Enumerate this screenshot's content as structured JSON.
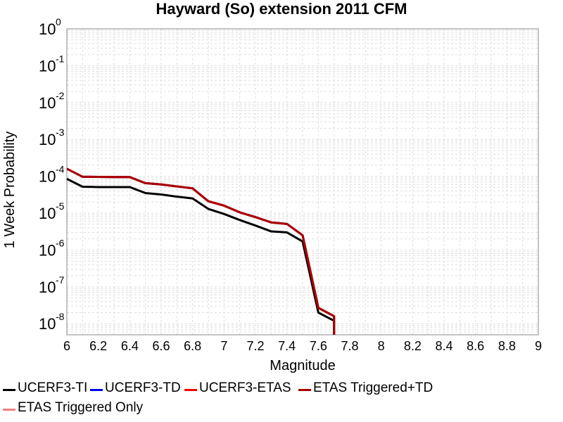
{
  "chart_data": {
    "type": "line",
    "title": "Hayward (So) extension 2011 CFM",
    "xlabel": "Magnitude",
    "ylabel": "1 Week Probability",
    "xlim": [
      6,
      9
    ],
    "ylim": [
      5e-09,
      1
    ],
    "y_scale": "log",
    "grid": true,
    "legend_position": "bottom",
    "x_ticks": [
      "6",
      "6.2",
      "6.4",
      "6.6",
      "6.8",
      "7",
      "7.2",
      "7.4",
      "7.6",
      "7.8",
      "8",
      "8.2",
      "8.4",
      "8.6",
      "8.8",
      "9"
    ],
    "y_ticks": [
      {
        "base": "10",
        "exp": "0"
      },
      {
        "base": "10",
        "exp": "-1"
      },
      {
        "base": "10",
        "exp": "-2"
      },
      {
        "base": "10",
        "exp": "-3"
      },
      {
        "base": "10",
        "exp": "-4"
      },
      {
        "base": "10",
        "exp": "-5"
      },
      {
        "base": "10",
        "exp": "-6"
      },
      {
        "base": "10",
        "exp": "-7"
      },
      {
        "base": "10",
        "exp": "-8"
      }
    ],
    "series": [
      {
        "name": "UCERF3-TI",
        "color": "#000000",
        "x": [
          6.0,
          6.1,
          6.2,
          6.3,
          6.4,
          6.5,
          6.6,
          6.7,
          6.8,
          6.9,
          7.0,
          7.1,
          7.2,
          7.3,
          7.4,
          7.5,
          7.6,
          7.7,
          7.7
        ],
        "y": [
          8.5e-05,
          5.2e-05,
          5.1e-05,
          5.1e-05,
          5.1e-05,
          3.5e-05,
          3.2e-05,
          2.8e-05,
          2.5e-05,
          1.3e-05,
          9.5e-06,
          6.5e-06,
          4.6e-06,
          3.2e-06,
          3e-06,
          1.7e-06,
          2e-08,
          1.2e-08,
          5e-09
        ]
      },
      {
        "name": "UCERF3-TD",
        "color": "#0000ff",
        "x": [
          6.0,
          6.1,
          6.2,
          6.3,
          6.4,
          6.5,
          6.6,
          6.7,
          6.8,
          6.9,
          7.0,
          7.1,
          7.2,
          7.3,
          7.4,
          7.5,
          7.6,
          7.7,
          7.7
        ],
        "y": [
          0.00016,
          9.7e-05,
          9.6e-05,
          9.5e-05,
          9.5e-05,
          6.5e-05,
          6e-05,
          5.3e-05,
          4.7e-05,
          2.1e-05,
          1.6e-05,
          1.05e-05,
          7.8e-06,
          5.6e-06,
          5.1e-06,
          2.5e-06,
          2.7e-08,
          1.6e-08,
          5e-09
        ]
      },
      {
        "name": "UCERF3-ETAS",
        "color": "#ff0000",
        "x": [
          6.0,
          6.1,
          6.2,
          6.3,
          6.4,
          6.5,
          6.6,
          6.7,
          6.8,
          6.9,
          7.0,
          7.1,
          7.2,
          7.3,
          7.4,
          7.5,
          7.6,
          7.7,
          7.7
        ],
        "y": [
          0.00016,
          9.7e-05,
          9.6e-05,
          9.5e-05,
          9.5e-05,
          6.5e-05,
          6e-05,
          5.3e-05,
          4.7e-05,
          2.1e-05,
          1.6e-05,
          1.05e-05,
          7.8e-06,
          5.6e-06,
          5.1e-06,
          2.5e-06,
          2.7e-08,
          1.6e-08,
          5e-09
        ]
      },
      {
        "name": "ETAS Triggered+TD",
        "color": "#a80000",
        "x": [
          6.0,
          6.1,
          6.2,
          6.3,
          6.4,
          6.5,
          6.6,
          6.7,
          6.8,
          6.9,
          7.0,
          7.1,
          7.2,
          7.3,
          7.4,
          7.5,
          7.6,
          7.7,
          7.7
        ],
        "y": [
          0.00016,
          9.7e-05,
          9.6e-05,
          9.5e-05,
          9.5e-05,
          6.5e-05,
          6e-05,
          5.3e-05,
          4.7e-05,
          2.1e-05,
          1.6e-05,
          1.05e-05,
          7.8e-06,
          5.6e-06,
          5.1e-06,
          2.5e-06,
          2.7e-08,
          1.6e-08,
          5e-09
        ]
      },
      {
        "name": "ETAS Triggered Only",
        "color": "#f08080",
        "x": [],
        "y": []
      }
    ]
  }
}
